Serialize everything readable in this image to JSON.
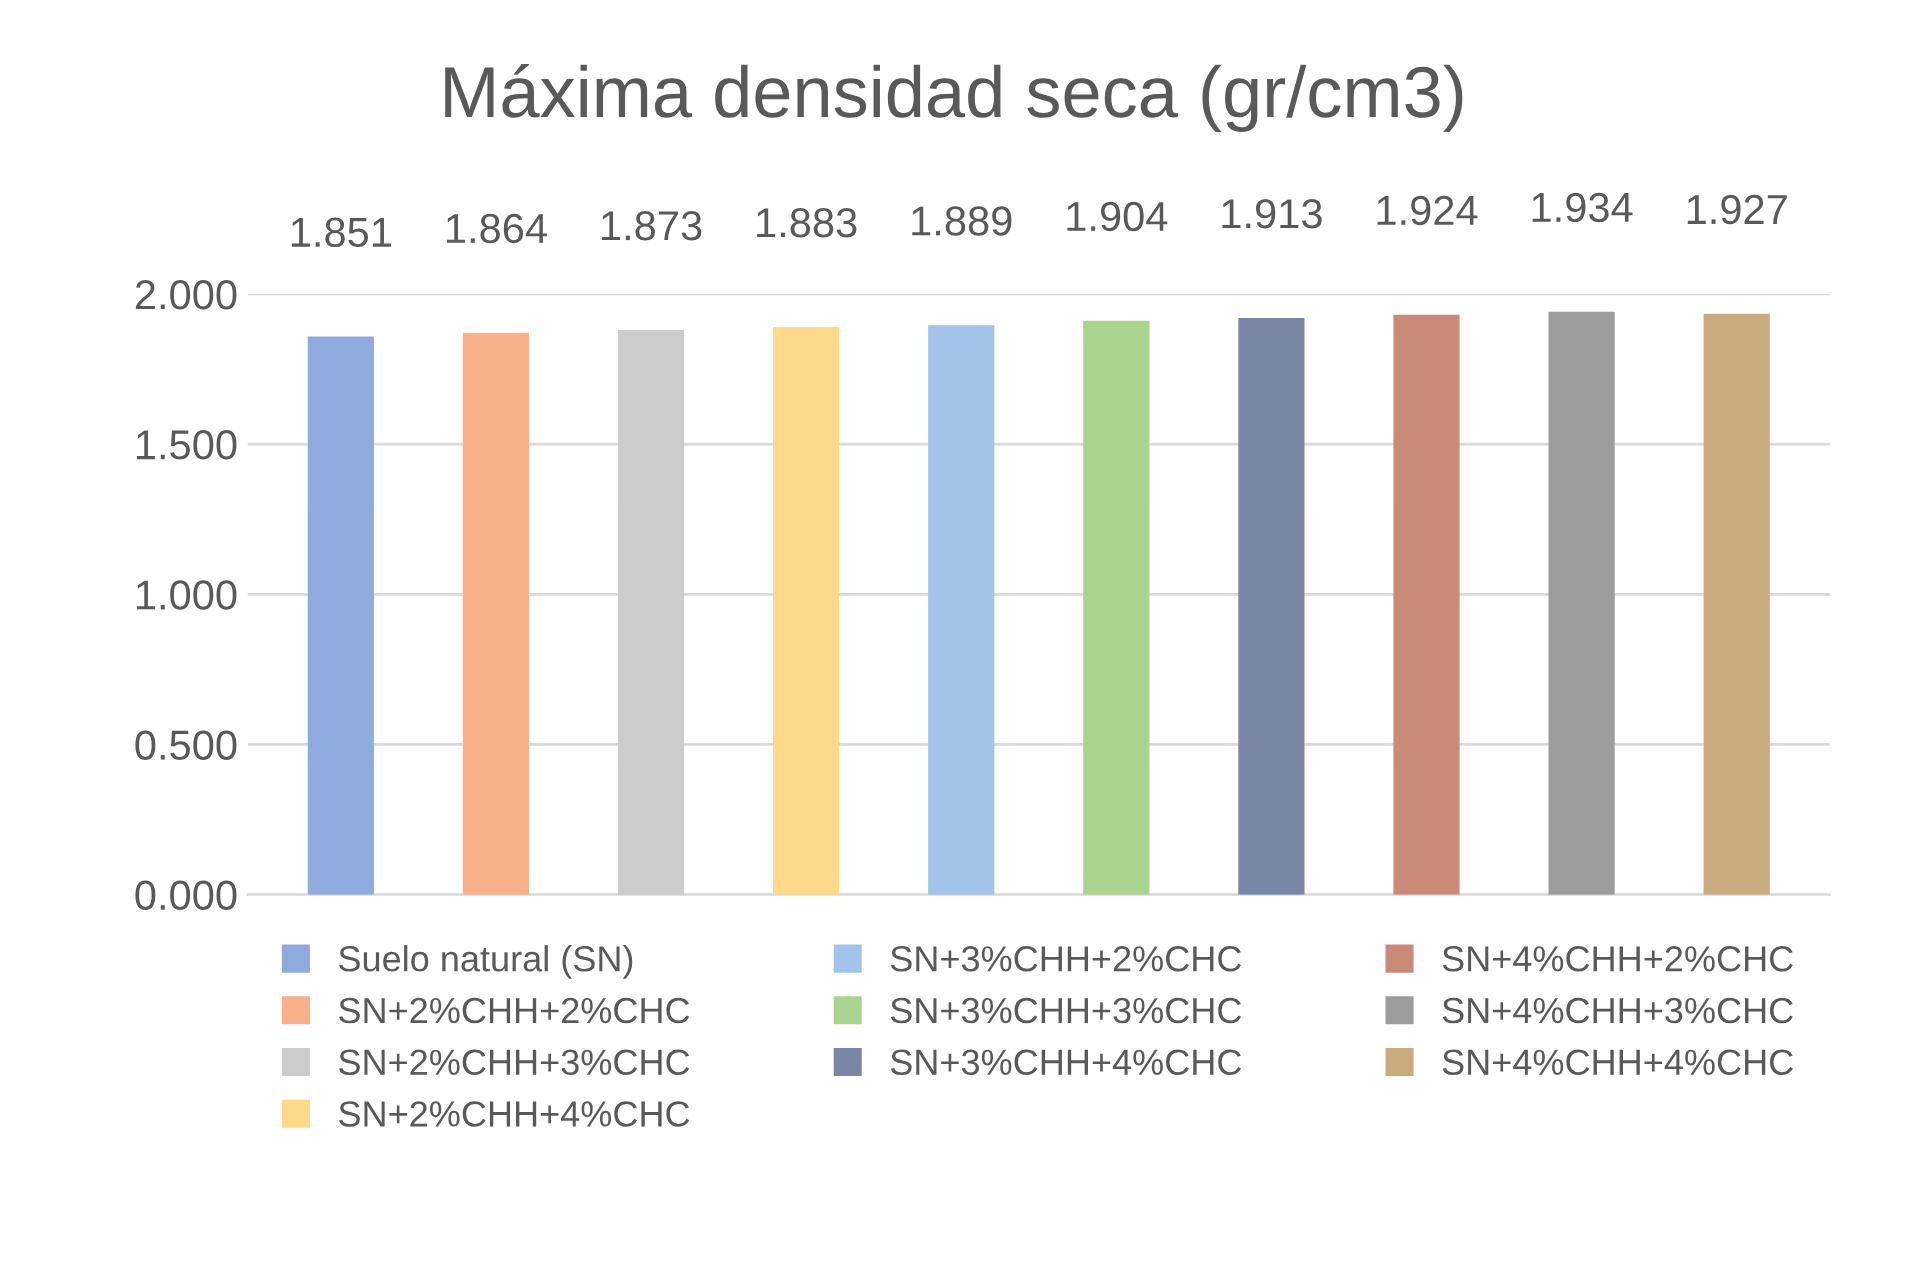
{
  "chart_data": {
    "type": "bar",
    "title": "Máxima densidad seca (gr/cm3)",
    "categories": [
      null,
      null,
      null,
      null,
      null,
      null,
      null,
      null,
      null,
      null
    ],
    "series": [
      {
        "name": "Suelo natural (SN)",
        "color": "#8faadc",
        "values": [
          1.851,
          null,
          null,
          null,
          null,
          null,
          null,
          null,
          null,
          null
        ]
      },
      {
        "name": "SN+2%CHH+2%CHC",
        "color": "#f7b08a",
        "values": [
          null,
          1.864,
          null,
          null,
          null,
          null,
          null,
          null,
          null,
          null
        ]
      },
      {
        "name": "SN+2%CHH+3%CHC",
        "color": "#cccccc",
        "values": [
          null,
          null,
          1.873,
          null,
          null,
          null,
          null,
          null,
          null,
          null
        ]
      },
      {
        "name": "SN+2%CHH+4%CHC",
        "color": "#ffd98a",
        "values": [
          null,
          null,
          null,
          1.883,
          null,
          null,
          null,
          null,
          null,
          null
        ]
      },
      {
        "name": "SN+3%CHH+2%CHC",
        "color": "#a2c4ea",
        "values": [
          null,
          null,
          null,
          null,
          1.889,
          null,
          null,
          null,
          null,
          null
        ]
      },
      {
        "name": "SN+3%CHH+3%CHC",
        "color": "#a9d38f",
        "values": [
          null,
          null,
          null,
          null,
          null,
          1.904,
          null,
          null,
          null,
          null
        ]
      },
      {
        "name": "SN+3%CHH+4%CHC",
        "color": "#7a86a6",
        "values": [
          null,
          null,
          null,
          null,
          null,
          null,
          1.913,
          null,
          null,
          null
        ]
      },
      {
        "name": "SN+4%CHH+2%CHC",
        "color": "#c98a78",
        "values": [
          null,
          null,
          null,
          null,
          null,
          null,
          null,
          1.924,
          null,
          null
        ]
      },
      {
        "name": "SN+4%CHH+3%CHC",
        "color": "#9c9c9c",
        "values": [
          null,
          null,
          null,
          null,
          null,
          null,
          null,
          null,
          1.934,
          null
        ]
      },
      {
        "name": "SN+4%CHH+4%CHC",
        "color": "#c9aa7f",
        "values": [
          null,
          null,
          null,
          null,
          null,
          null,
          null,
          null,
          null,
          1.927
        ]
      }
    ],
    "ylim": [
      0,
      2.0
    ],
    "yticks": [
      {
        "value": 0,
        "label": "0.000"
      },
      {
        "value": 0.5,
        "label": "0.500"
      },
      {
        "value": 1.0,
        "label": "1.000"
      },
      {
        "value": 1.5,
        "label": "1.500"
      },
      {
        "value": 2.0,
        "label": "2.000"
      }
    ],
    "grid": "y",
    "legend": "bottom",
    "data_labels": true
  }
}
